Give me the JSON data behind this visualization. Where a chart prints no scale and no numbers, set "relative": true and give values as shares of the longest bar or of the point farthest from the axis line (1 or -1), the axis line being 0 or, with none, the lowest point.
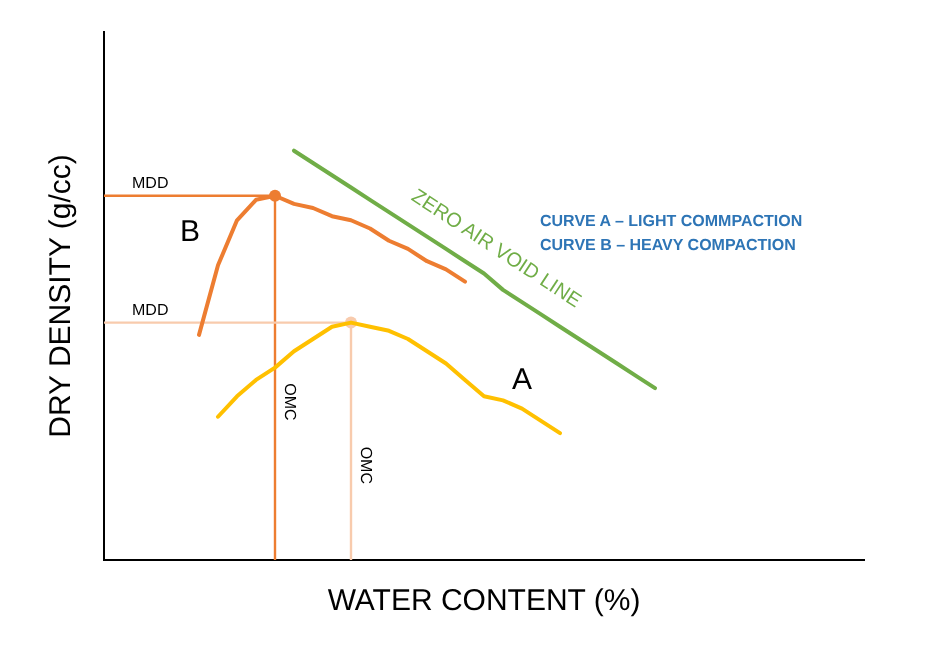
{
  "chart_data": {
    "type": "line",
    "relative": true,
    "xlabel": "WATER CONTENT (%)",
    "ylabel": "DRY DENSITY (g/cc)",
    "tick_labels": false,
    "grid": false,
    "legend": false,
    "marker": "none",
    "line_style": "solid",
    "categories": [
      null,
      null,
      null,
      null,
      null,
      null,
      null,
      null,
      null,
      null,
      null,
      null,
      null,
      null,
      null,
      null,
      null,
      null,
      null,
      null,
      null,
      null,
      null,
      null,
      null,
      null,
      null,
      null,
      null,
      null,
      null,
      null,
      null,
      null,
      null,
      null,
      null,
      null,
      null,
      null,
      null
    ],
    "series": [
      {
        "name": "B",
        "color": "#ed7d31",
        "values": [
          null,
          null,
          null,
          null,
          null,
          0.55,
          0.72,
          0.83,
          0.88,
          0.89,
          0.87,
          0.86,
          0.84,
          0.83,
          0.81,
          0.78,
          0.76,
          0.73,
          0.71,
          0.68,
          null,
          null,
          null,
          null,
          null,
          null,
          null,
          null,
          null,
          null,
          null,
          null,
          null,
          null,
          null,
          null,
          null,
          null,
          null,
          null,
          null
        ]
      },
      {
        "name": "A",
        "color": "#ffc000",
        "values": [
          null,
          null,
          null,
          null,
          null,
          null,
          0.35,
          0.4,
          0.44,
          0.47,
          0.51,
          0.54,
          0.57,
          0.58,
          0.57,
          0.56,
          0.54,
          0.51,
          0.48,
          0.44,
          0.4,
          0.39,
          0.37,
          0.34,
          0.31,
          null,
          null,
          null,
          null,
          null,
          null,
          null,
          null,
          null,
          null,
          null,
          null,
          null,
          null,
          null,
          null
        ]
      },
      {
        "name": "ZERO AIR VOID LINE",
        "color": "#70ad47",
        "values": [
          null,
          null,
          null,
          null,
          null,
          null,
          null,
          null,
          null,
          null,
          1,
          0.97,
          0.94,
          0.91,
          0.88,
          0.85,
          0.82,
          0.79,
          0.76,
          0.73,
          0.7,
          0.66,
          0.63,
          0.6,
          0.57,
          0.54,
          0.51,
          0.48,
          0.45,
          0.42,
          null,
          null,
          null,
          null,
          null,
          null,
          null,
          null,
          null,
          null,
          null
        ]
      }
    ],
    "ref_lines": [
      {
        "axis": "y",
        "value": 0.89,
        "label": "MDD",
        "color": "#ed7d31"
      },
      {
        "axis": "y",
        "value": 0.58,
        "label": "MDD",
        "color": "#f8cbad"
      }
    ],
    "annotations": [
      "CURVE A – LIGHT COMMPACTION",
      "CURVE B – HEAVY COMPACTION",
      "OMC",
      "OMC"
    ]
  }
}
